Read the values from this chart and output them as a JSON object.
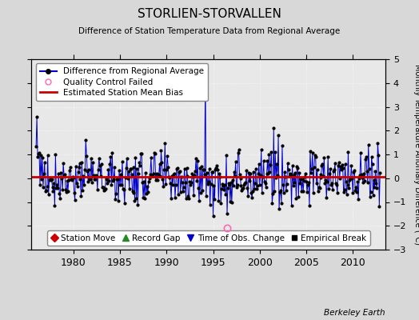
{
  "title": "STORLIEN-STORVALLEN",
  "subtitle": "Difference of Station Temperature Data from Regional Average",
  "ylabel": "Monthly Temperature Anomaly Difference (°C)",
  "xlabel_bottom": "Berkeley Earth",
  "ylim": [
    -3,
    5
  ],
  "yticks": [
    -3,
    -2,
    -1,
    0,
    1,
    2,
    3,
    4,
    5
  ],
  "xlim": [
    1975.5,
    2013.5
  ],
  "xticks": [
    1980,
    1985,
    1990,
    1995,
    2000,
    2005,
    2010
  ],
  "mean_bias": 0.07,
  "bias_color": "#cc0000",
  "line_color": "#0000cc",
  "dot_color": "#000000",
  "qc_color": "#ff69b4",
  "background_color": "#d8d8d8",
  "plot_bg": "#e8e8e8",
  "legend1": [
    {
      "label": "Difference from Regional Average"
    },
    {
      "label": "Quality Control Failed"
    },
    {
      "label": "Estimated Station Mean Bias"
    }
  ],
  "legend2": [
    {
      "label": "Station Move",
      "color": "#cc0000",
      "marker": "D"
    },
    {
      "label": "Record Gap",
      "color": "#228B22",
      "marker": "^"
    },
    {
      "label": "Time of Obs. Change",
      "color": "#0000cc",
      "marker": "v"
    },
    {
      "label": "Empirical Break",
      "color": "#000000",
      "marker": "s"
    }
  ]
}
